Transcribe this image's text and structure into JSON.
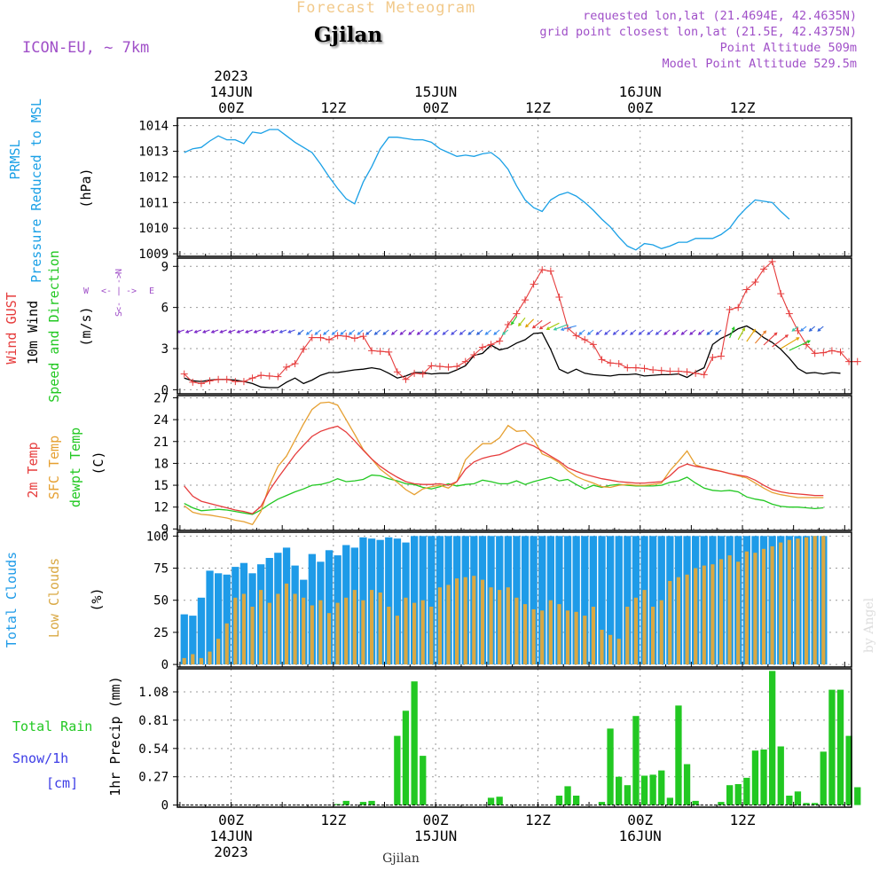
{
  "header": {
    "title": "Forecast Meteogram",
    "city": "Gjilan",
    "model": "ICON-EU, ~ 7km",
    "requested": "requested lon,lat (21.4694E, 42.4635N)",
    "gridpoint": "grid point closest lon,lat (21.5E, 42.4375N)",
    "altitude": "Point Altitude 509m",
    "model_altitude": "Model Point Altitude 529.5m",
    "watermark": "by Angel",
    "footer_city": "Gjilan"
  },
  "colors": {
    "pressure": "#1aa0e6",
    "gust": "#e63c3c",
    "wind": "#000000",
    "temp2m": "#e63c3c",
    "sfc": "#e6a032",
    "dewpt": "#22c822",
    "total_clouds": "#1e9be8",
    "low_clouds": "#d9a843",
    "rain": "#22c822",
    "snow": "#3c3ce6",
    "purple": "#a050c8"
  },
  "x_axis": {
    "top_year": "2023",
    "bottom_year": "2023",
    "hour_ticks": [
      {
        "hour": 0,
        "label": "00Z",
        "date": "14JUN"
      },
      {
        "hour": 12,
        "label": "12Z",
        "date": ""
      },
      {
        "hour": 24,
        "label": "00Z",
        "date": "15JUN"
      },
      {
        "hour": 36,
        "label": "12Z",
        "date": ""
      },
      {
        "hour": 48,
        "label": "00Z",
        "date": "16JUN"
      },
      {
        "hour": 60,
        "label": "12Z",
        "date": ""
      }
    ]
  },
  "chart_data": [
    {
      "type": "line",
      "title": "PRMSL Pressure Reduced to MSL",
      "ylabel_lines": [
        "PRMSL",
        "Pressure Reduced to MSL"
      ],
      "unit": "(hPa)",
      "ylim": [
        1008.9,
        1014.3
      ],
      "yticks": [
        1009,
        1010,
        1011,
        1012,
        1013,
        1014
      ],
      "x_start_hour": -5.5,
      "x_step_hours": 1,
      "series": [
        {
          "name": "Pressure",
          "values": [
            1012.95,
            1013.1,
            1013.15,
            1013.4,
            1013.6,
            1013.45,
            1013.45,
            1013.3,
            1013.75,
            1013.7,
            1013.85,
            1013.85,
            1013.6,
            1013.35,
            1013.15,
            1012.95,
            1012.5,
            1012.0,
            1011.55,
            1011.15,
            1010.95,
            1011.8,
            1012.4,
            1013.1,
            1013.55,
            1013.55,
            1013.5,
            1013.45,
            1013.45,
            1013.35,
            1013.1,
            1012.95,
            1012.8,
            1012.85,
            1012.8,
            1012.9,
            1012.95,
            1012.7,
            1012.3,
            1011.65,
            1011.1,
            1010.8,
            1010.65,
            1011.1,
            1011.3,
            1011.4,
            1011.25,
            1011.0,
            1010.7,
            1010.35,
            1010.05,
            1009.65,
            1009.3,
            1009.15,
            1009.4,
            1009.35,
            1009.2,
            1009.3,
            1009.45,
            1009.45,
            1009.6,
            1009.6,
            1009.6,
            1009.75,
            1010.0,
            1010.45,
            1010.8,
            1011.1,
            1011.05,
            1011.0,
            1010.65,
            1010.35
          ]
        }
      ]
    },
    {
      "type": "line",
      "title": "Wind GUST / 10m Wind Speed and Direction",
      "ylabel_lines": [
        "Wind GUST",
        "10m Wind",
        "Speed and Direction"
      ],
      "unit": "(m/s)",
      "compass": {
        "w": "W",
        "e": "E",
        "n": "N",
        "s": "S"
      },
      "ylim": [
        -0.3,
        9.6
      ],
      "yticks": [
        0,
        3,
        6,
        9
      ],
      "x_start_hour": -5.5,
      "x_step_hours": 1,
      "series": [
        {
          "name": "Wind GUST",
          "values": [
            1.15,
            0.55,
            0.45,
            0.65,
            0.75,
            0.75,
            0.6,
            0.6,
            0.85,
            1.05,
            1.0,
            0.95,
            1.65,
            1.9,
            2.95,
            3.8,
            3.8,
            3.65,
            3.95,
            3.9,
            3.75,
            3.9,
            2.85,
            2.8,
            2.75,
            1.3,
            0.75,
            1.2,
            1.15,
            1.75,
            1.7,
            1.65,
            1.7,
            2.05,
            2.55,
            3.1,
            3.3,
            3.55,
            4.75,
            5.55,
            6.55,
            7.7,
            8.75,
            8.65,
            6.75,
            4.5,
            3.95,
            3.65,
            3.3,
            2.2,
            1.95,
            1.9,
            1.6,
            1.6,
            1.55,
            1.45,
            1.4,
            1.35,
            1.35,
            1.3,
            1.2,
            1.1,
            2.35,
            2.45,
            5.85,
            6.0,
            7.3,
            7.85,
            8.8,
            9.35,
            7.0,
            5.55,
            4.3,
            3.3,
            2.65,
            2.7,
            2.85,
            2.75,
            2.05,
            2.05
          ]
        },
        {
          "name": "10m Wind",
          "values": [
            0.85,
            0.65,
            0.6,
            0.7,
            0.75,
            0.75,
            0.7,
            0.6,
            0.45,
            0.2,
            0.15,
            0.15,
            0.55,
            0.85,
            0.45,
            0.7,
            1.05,
            1.25,
            1.25,
            1.35,
            1.45,
            1.5,
            1.6,
            1.5,
            1.2,
            0.85,
            1.0,
            1.25,
            1.25,
            1.15,
            1.2,
            1.2,
            1.45,
            1.75,
            2.5,
            2.65,
            3.25,
            2.9,
            3.05,
            3.4,
            3.65,
            4.1,
            4.15,
            2.95,
            1.5,
            1.2,
            1.5,
            1.2,
            1.1,
            1.05,
            1.0,
            1.1,
            1.1,
            1.15,
            1.0,
            1.05,
            1.1,
            1.1,
            1.15,
            0.9,
            1.3,
            1.6,
            3.3,
            3.75,
            4.05,
            4.45,
            4.65,
            4.3,
            3.8,
            3.45,
            2.95,
            2.3,
            1.55,
            1.2,
            1.25,
            1.15,
            1.25,
            1.2
          ]
        }
      ]
    },
    {
      "type": "line",
      "title": "2m Temp / SFC Temp / dewpt Temp",
      "ylabel_lines": [
        "2m Temp",
        "SFC Temp",
        "dewpt Temp"
      ],
      "unit": "(C)",
      "ylim": [
        8.8,
        27.3
      ],
      "yticks": [
        9,
        12,
        15,
        18,
        21,
        24,
        27
      ],
      "x_start_hour": -5.5,
      "x_step_hours": 1,
      "series": [
        {
          "name": "2m Temp",
          "values": [
            14.9,
            13.5,
            12.8,
            12.5,
            12.2,
            11.9,
            11.6,
            11.4,
            11.1,
            12.1,
            14.3,
            16.0,
            17.6,
            19.2,
            20.5,
            21.7,
            22.4,
            22.8,
            23.1,
            22.3,
            21.1,
            19.8,
            18.6,
            17.6,
            16.8,
            16.1,
            15.5,
            15.2,
            15.1,
            15.1,
            15.2,
            15.0,
            15.5,
            17.2,
            18.2,
            18.7,
            19.0,
            19.2,
            19.7,
            20.3,
            20.8,
            20.4,
            19.7,
            19.0,
            18.3,
            17.4,
            16.9,
            16.5,
            16.2,
            15.9,
            15.7,
            15.5,
            15.4,
            15.3,
            15.3,
            15.4,
            15.5,
            16.3,
            17.4,
            17.9,
            17.6,
            17.4,
            17.1,
            16.9,
            16.6,
            16.4,
            16.2,
            15.7,
            15.0,
            14.4,
            14.1,
            13.9,
            13.8,
            13.7,
            13.6,
            13.6
          ]
        },
        {
          "name": "SFC Temp",
          "values": [
            12.2,
            11.3,
            11.0,
            10.9,
            10.7,
            10.5,
            10.2,
            10.0,
            9.6,
            11.4,
            15.0,
            17.6,
            19.0,
            21.2,
            23.4,
            25.4,
            26.3,
            26.4,
            26.0,
            24.0,
            22.0,
            19.9,
            18.6,
            17.2,
            16.3,
            15.4,
            14.4,
            13.7,
            14.5,
            14.8,
            15.0,
            14.6,
            15.5,
            18.5,
            19.7,
            20.7,
            20.7,
            21.5,
            23.2,
            22.4,
            22.5,
            21.3,
            19.3,
            18.8,
            18.1,
            17.0,
            16.2,
            15.7,
            15.3,
            14.8,
            14.7,
            15.0,
            15.1,
            15.0,
            15.0,
            15.1,
            15.3,
            17.0,
            18.3,
            19.7,
            17.8,
            17.4,
            17.2,
            16.9,
            16.6,
            16.3,
            16.0,
            15.3,
            14.6,
            14.0,
            13.7,
            13.5,
            13.3,
            13.3,
            13.3,
            13.3
          ]
        },
        {
          "name": "dewpt Temp",
          "values": [
            12.5,
            11.9,
            11.5,
            11.6,
            11.7,
            11.6,
            11.4,
            11.2,
            11.0,
            11.6,
            12.4,
            13.1,
            13.6,
            14.1,
            14.5,
            15.0,
            15.1,
            15.4,
            15.9,
            15.5,
            15.6,
            15.8,
            16.4,
            16.3,
            15.9,
            15.6,
            15.2,
            15.1,
            14.7,
            14.5,
            14.8,
            15.2,
            14.9,
            15.1,
            15.2,
            15.7,
            15.5,
            15.2,
            15.2,
            15.6,
            15.1,
            15.5,
            15.8,
            16.1,
            15.6,
            15.8,
            15.1,
            14.5,
            15.0,
            14.7,
            15.0,
            15.1,
            15.0,
            14.9,
            14.9,
            14.9,
            15.0,
            15.4,
            15.6,
            16.1,
            15.3,
            14.6,
            14.3,
            14.2,
            14.3,
            14.1,
            13.4,
            13.1,
            12.9,
            12.4,
            12.1,
            12.0,
            12.0,
            11.9,
            11.8,
            11.9
          ]
        }
      ]
    },
    {
      "type": "bar",
      "title": "Total Clouds / Low Clouds",
      "ylabel_lines": [
        "Total Clouds",
        "Low Clouds"
      ],
      "unit": "(%)",
      "ylim": [
        -2,
        103
      ],
      "yticks": [
        0,
        25,
        50,
        75,
        100
      ],
      "x_start_hour": -5.5,
      "x_step_hours": 1,
      "series": [
        {
          "name": "Total Clouds",
          "values": [
            39,
            38,
            52,
            73,
            71,
            70,
            76,
            79,
            71,
            78,
            83,
            87,
            91,
            77,
            66,
            86,
            80,
            89,
            85,
            93,
            91,
            99,
            98,
            97,
            99,
            98,
            95,
            100,
            100,
            100,
            100,
            100,
            100,
            100,
            100,
            100,
            100,
            100,
            100,
            100,
            100,
            100,
            100,
            100,
            100,
            100,
            100,
            100,
            100,
            100,
            100,
            100,
            100,
            100,
            100,
            100,
            100,
            100,
            100,
            100,
            100,
            100,
            100,
            100,
            100,
            100,
            100,
            100,
            100,
            100,
            100,
            100,
            100,
            100,
            100,
            100
          ]
        },
        {
          "name": "Low Clouds",
          "values": [
            5,
            8,
            5,
            10,
            20,
            32,
            52,
            55,
            45,
            58,
            48,
            55,
            63,
            55,
            52,
            46,
            50,
            40,
            48,
            52,
            58,
            50,
            58,
            56,
            45,
            38,
            52,
            48,
            50,
            45,
            60,
            62,
            67,
            68,
            69,
            66,
            60,
            58,
            60,
            52,
            47,
            43,
            42,
            50,
            47,
            42,
            41,
            38,
            45,
            27,
            23,
            20,
            45,
            52,
            58,
            45,
            50,
            65,
            68,
            70,
            75,
            77,
            78,
            82,
            85,
            80,
            88,
            87,
            90,
            92,
            95,
            97,
            98,
            99,
            100,
            100
          ]
        }
      ]
    },
    {
      "type": "bar",
      "title": "Total Rain / Snow per 1h",
      "ylabel_lines": [
        "1hr Precip (mm)"
      ],
      "legend": {
        "rain": "Total Rain",
        "snow_line1": "Snow/1h",
        "snow_line2": "[cm]"
      },
      "ylim": [
        -0.02,
        1.3
      ],
      "yticks": [
        0,
        0.27,
        0.54,
        0.81,
        1.08
      ],
      "x_start_hour": -5.5,
      "x_step_hours": 1,
      "series": [
        {
          "name": "Total Rain",
          "values": [
            0,
            0,
            0,
            0,
            0,
            0,
            0,
            0,
            0,
            0,
            0,
            0,
            0,
            0,
            0,
            0,
            0,
            0,
            0.01,
            0.04,
            0,
            0.03,
            0.04,
            0,
            0,
            0.66,
            0.9,
            1.18,
            0.47,
            0,
            0,
            0,
            0,
            0,
            0,
            0,
            0.07,
            0.08,
            0,
            0,
            0,
            0,
            0,
            0,
            0.09,
            0.18,
            0.09,
            0,
            0,
            0.03,
            0.73,
            0.27,
            0.19,
            0.85,
            0.28,
            0.29,
            0.33,
            0.07,
            0.95,
            0.39,
            0.04,
            0,
            0,
            0.03,
            0.19,
            0.2,
            0.26,
            0.52,
            0.53,
            1.28,
            0.56,
            0.09,
            0.13,
            0.02,
            0.02,
            0.51,
            1.1,
            1.1,
            0.66,
            0.17
          ]
        }
      ]
    }
  ]
}
